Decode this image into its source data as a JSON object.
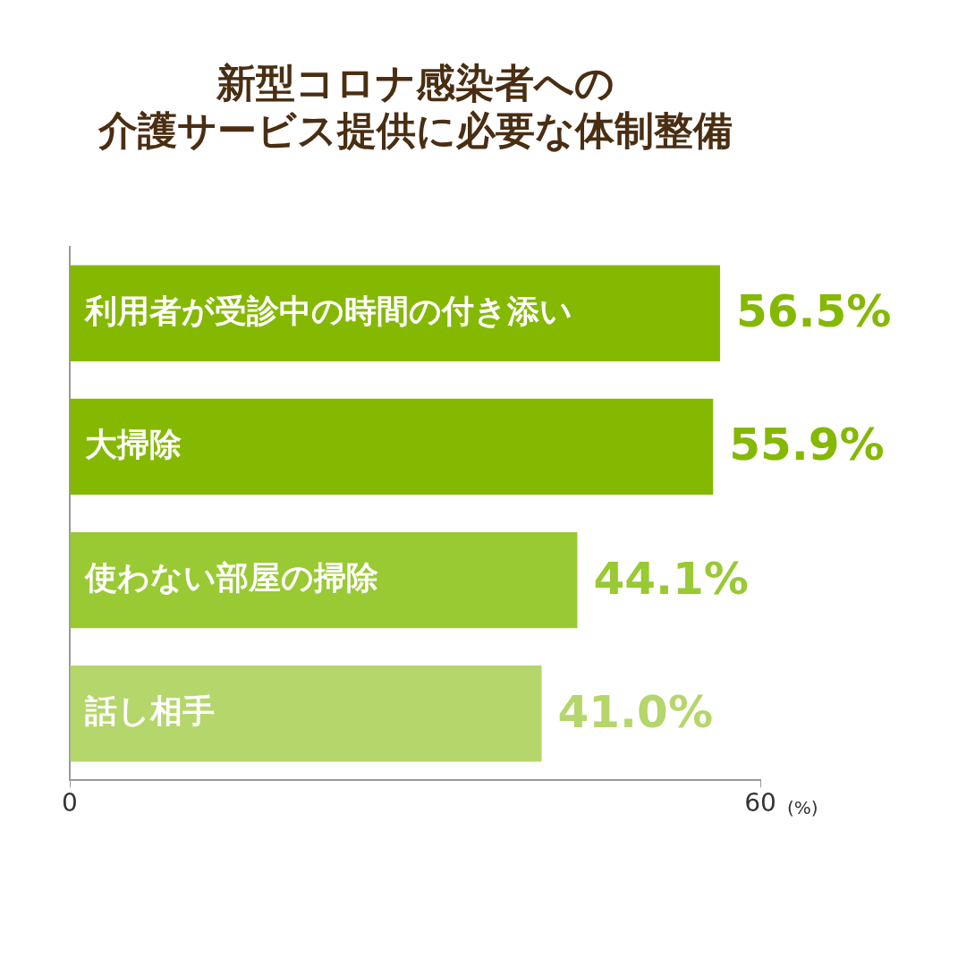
{
  "chart_data": {
    "type": "bar",
    "orientation": "horizontal",
    "title": "新型コロナ感染者への介護サービス提供に必要な体制整備",
    "xlabel": "(%)",
    "categories": [
      "利用者が受診中の時間の付き添い",
      "大掃除",
      "使わない部屋の掃除",
      "話し相手"
    ],
    "values": [
      56.5,
      55.9,
      44.1,
      41.0
    ],
    "colors": [
      "#85b800",
      "#85b800",
      "#99c933",
      "#b5d66b"
    ],
    "value_labels": [
      "56.5%",
      "55.9%",
      "44.1%",
      "41.0%"
    ],
    "xlim": [
      0,
      60
    ],
    "xticks": [
      0,
      60
    ],
    "grid": false,
    "legend": false
  }
}
